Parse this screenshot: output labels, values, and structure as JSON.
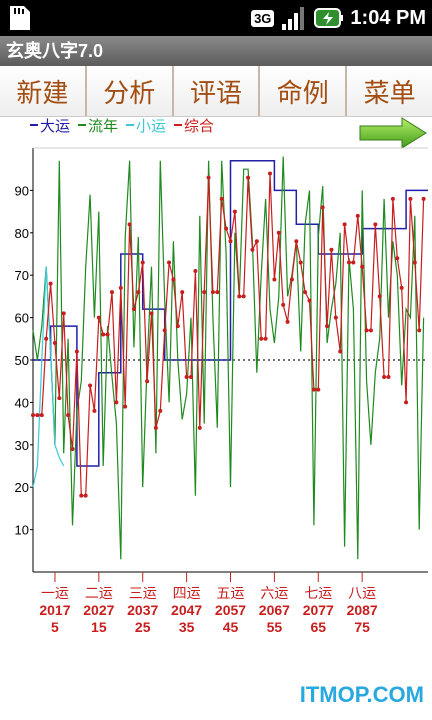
{
  "status": {
    "network": "3G",
    "time": "1:04 PM"
  },
  "app": {
    "title": "玄奥八字7.0"
  },
  "menu": [
    {
      "label": "新建",
      "name": "menu-new"
    },
    {
      "label": "分析",
      "name": "menu-analyze"
    },
    {
      "label": "评语",
      "name": "menu-comment"
    },
    {
      "label": "命例",
      "name": "menu-cases"
    },
    {
      "label": "菜单",
      "name": "menu-menu"
    }
  ],
  "legend": [
    {
      "label": "大运",
      "color": "#1f1fa8"
    },
    {
      "label": "流年",
      "color": "#1f8a1f"
    },
    {
      "label": "小运",
      "color": "#38c8d8"
    },
    {
      "label": "综合",
      "color": "#c81e1e"
    }
  ],
  "watermark": "ITMOP.COM",
  "chart_data": {
    "type": "line",
    "ylim": [
      0,
      100
    ],
    "yticks": [
      10,
      20,
      30,
      40,
      50,
      60,
      70,
      80,
      90
    ],
    "xlim": [
      0,
      90
    ],
    "baseline": 50,
    "grid": false,
    "x_groups": [
      {
        "x": 5,
        "label": "一运",
        "year": "2017",
        "age": "5"
      },
      {
        "x": 15,
        "label": "二运",
        "year": "2027",
        "age": "15"
      },
      {
        "x": 25,
        "label": "三运",
        "year": "2037",
        "age": "25"
      },
      {
        "x": 35,
        "label": "四运",
        "year": "2047",
        "age": "35"
      },
      {
        "x": 45,
        "label": "五运",
        "year": "2057",
        "age": "45"
      },
      {
        "x": 55,
        "label": "六运",
        "year": "2067",
        "age": "55"
      },
      {
        "x": 65,
        "label": "七运",
        "year": "2077",
        "age": "65"
      },
      {
        "x": 75,
        "label": "八运",
        "year": "2087",
        "age": "75"
      }
    ],
    "series": [
      {
        "name": "大运",
        "color": "#1f1fa8",
        "step": true,
        "x": [
          0,
          2,
          4,
          8,
          10,
          14,
          15,
          18,
          20,
          25,
          30,
          35,
          45,
          55,
          60,
          65,
          75,
          80,
          85,
          90
        ],
        "values": [
          50,
          50,
          58,
          58,
          25,
          25,
          47,
          47,
          75,
          62,
          50,
          50,
          97,
          90,
          82,
          75,
          81,
          81,
          90,
          90
        ]
      },
      {
        "name": "流年",
        "color": "#1f8a1f",
        "x": [
          0,
          1,
          2,
          3,
          4,
          5,
          6,
          7,
          8,
          9,
          10,
          11,
          12,
          13,
          14,
          15,
          16,
          17,
          18,
          19,
          20,
          21,
          22,
          23,
          24,
          25,
          26,
          27,
          28,
          29,
          30,
          31,
          32,
          33,
          34,
          35,
          36,
          37,
          38,
          39,
          40,
          41,
          42,
          43,
          44,
          45,
          46,
          47,
          48,
          49,
          50,
          51,
          52,
          53,
          54,
          55,
          56,
          57,
          58,
          59,
          60,
          61,
          62,
          63,
          64,
          65,
          66,
          67,
          68,
          69,
          70,
          71,
          72,
          73,
          74,
          75,
          76,
          77,
          78,
          79,
          80,
          81,
          82,
          83,
          84,
          85,
          86,
          87,
          88,
          89
        ],
        "values": [
          57,
          50,
          58,
          72,
          52,
          30,
          97,
          28,
          55,
          11,
          38,
          45,
          72,
          89,
          60,
          85,
          25,
          58,
          46,
          35,
          3,
          79,
          97,
          53,
          79,
          20,
          49,
          72,
          28,
          97,
          64,
          40,
          78,
          50,
          36,
          42,
          60,
          18,
          84,
          35,
          97,
          60,
          34,
          97,
          75,
          20,
          80,
          65,
          95,
          95,
          78,
          47,
          70,
          88,
          62,
          54,
          65,
          98,
          65,
          70,
          78,
          52,
          82,
          90,
          11,
          79,
          91,
          54,
          62,
          68,
          80,
          6,
          74,
          62,
          3,
          90,
          45,
          30,
          47,
          55,
          88,
          60,
          78,
          70,
          44,
          62,
          60,
          84,
          10,
          60
        ]
      },
      {
        "name": "小运",
        "color": "#38c8d8",
        "x": [
          0,
          1,
          2,
          3,
          4,
          5,
          6,
          7
        ],
        "values": [
          20,
          25,
          50,
          72,
          52,
          30,
          27,
          25
        ]
      },
      {
        "name": "综合",
        "color": "#c81e1e",
        "markers": true,
        "x": [
          0,
          1,
          2,
          3,
          4,
          5,
          6,
          7,
          8,
          9,
          10,
          11,
          12,
          13,
          14,
          15,
          16,
          17,
          18,
          19,
          20,
          21,
          22,
          23,
          24,
          25,
          26,
          27,
          28,
          29,
          30,
          31,
          32,
          33,
          34,
          35,
          36,
          37,
          38,
          39,
          40,
          41,
          42,
          43,
          44,
          45,
          46,
          47,
          48,
          49,
          50,
          51,
          52,
          53,
          54,
          55,
          56,
          57,
          58,
          59,
          60,
          61,
          62,
          63,
          64,
          65,
          66,
          67,
          68,
          69,
          70,
          71,
          72,
          73,
          74,
          75,
          76,
          77,
          78,
          79,
          80,
          81,
          82,
          83,
          84,
          85,
          86,
          87,
          88,
          89
        ],
        "values": [
          37,
          37,
          37,
          55,
          68,
          54,
          41,
          61,
          37,
          29,
          52,
          18,
          18,
          44,
          38,
          60,
          56,
          56,
          66,
          40,
          67,
          39,
          82,
          62,
          66,
          73,
          45,
          61,
          34,
          38,
          57,
          73,
          69,
          58,
          66,
          46,
          46,
          71,
          34,
          66,
          93,
          66,
          66,
          88,
          81,
          78,
          85,
          65,
          65,
          93,
          76,
          78,
          55,
          55,
          94,
          69,
          80,
          63,
          59,
          69,
          78,
          73,
          66,
          64,
          43,
          43,
          86,
          58,
          76,
          60,
          52,
          82,
          73,
          73,
          84,
          72,
          57,
          57,
          82,
          65,
          46,
          46,
          88,
          74,
          67,
          40,
          88,
          73,
          57,
          88
        ]
      }
    ]
  }
}
